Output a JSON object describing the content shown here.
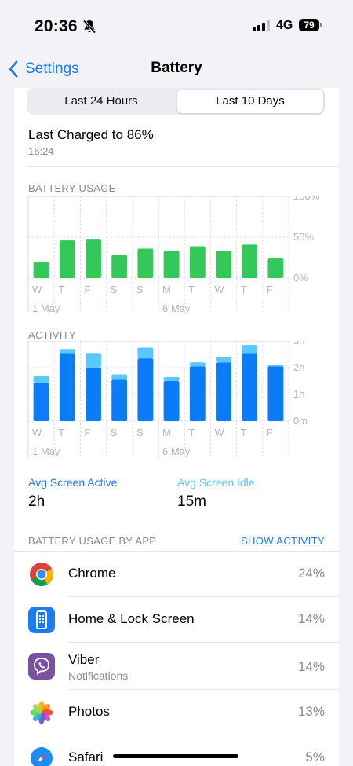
{
  "status": {
    "time": "20:36",
    "network": "4G",
    "battery": "79"
  },
  "nav": {
    "back_label": "Settings",
    "title": "Battery"
  },
  "segments": {
    "left": "Last 24 Hours",
    "right": "Last 10 Days",
    "selected": "right"
  },
  "charge": {
    "title": "Last Charged to 86%",
    "time": "16:24"
  },
  "battery_usage": {
    "label": "BATTERY USAGE"
  },
  "activity": {
    "label": "ACTIVITY"
  },
  "avg": {
    "active_label": "Avg Screen Active",
    "active_value": "2h",
    "idle_label": "Avg Screen Idle",
    "idle_value": "15m"
  },
  "apps_section": {
    "label": "BATTERY USAGE BY APP",
    "action": "SHOW ACTIVITY"
  },
  "apps": [
    {
      "name": "Chrome",
      "sub": "",
      "pct": "24%",
      "icon": "chrome-icon"
    },
    {
      "name": "Home & Lock Screen",
      "sub": "",
      "pct": "14%",
      "icon": "home-lock-screen-icon"
    },
    {
      "name": "Viber",
      "sub": "Notifications",
      "pct": "14%",
      "icon": "viber-icon"
    },
    {
      "name": "Photos",
      "sub": "",
      "pct": "13%",
      "icon": "photos-icon"
    },
    {
      "name": "Safari",
      "sub": "",
      "pct": "5%",
      "icon": "safari-icon"
    }
  ],
  "colors": {
    "accent": "#1a7cf0",
    "usage_bar": "#34c759",
    "screen_on": "#0a7cf5",
    "screen_off": "#5ac8fa"
  },
  "chart_data": [
    {
      "type": "bar",
      "title": "BATTERY USAGE",
      "categories": [
        "W",
        "T",
        "F",
        "S",
        "S",
        "M",
        "T",
        "W",
        "T",
        "F"
      ],
      "date_labels": [
        "1 May",
        "6 May"
      ],
      "y_ticks": [
        "100%",
        "50%",
        "0%"
      ],
      "ylim": [
        0,
        100
      ],
      "series": [
        {
          "values": [
            20,
            46,
            48,
            28,
            36,
            33,
            39,
            33,
            41,
            24
          ]
        }
      ]
    },
    {
      "type": "bar",
      "title": "ACTIVITY",
      "categories": [
        "W",
        "T",
        "F",
        "S",
        "S",
        "M",
        "T",
        "W",
        "T",
        "F"
      ],
      "date_labels": [
        "1 May",
        "6 May"
      ],
      "y_ticks": [
        "3h",
        "2h",
        "1h",
        "0m"
      ],
      "ylim": [
        0,
        3
      ],
      "stacked": true,
      "series": [
        {
          "values": [
            1.45,
            2.55,
            2.0,
            1.55,
            2.35,
            1.5,
            2.05,
            2.2,
            2.55,
            2.05
          ]
        },
        {
          "values": [
            0.25,
            0.15,
            0.55,
            0.2,
            0.4,
            0.15,
            0.15,
            0.2,
            0.3,
            0.05
          ]
        }
      ]
    }
  ]
}
